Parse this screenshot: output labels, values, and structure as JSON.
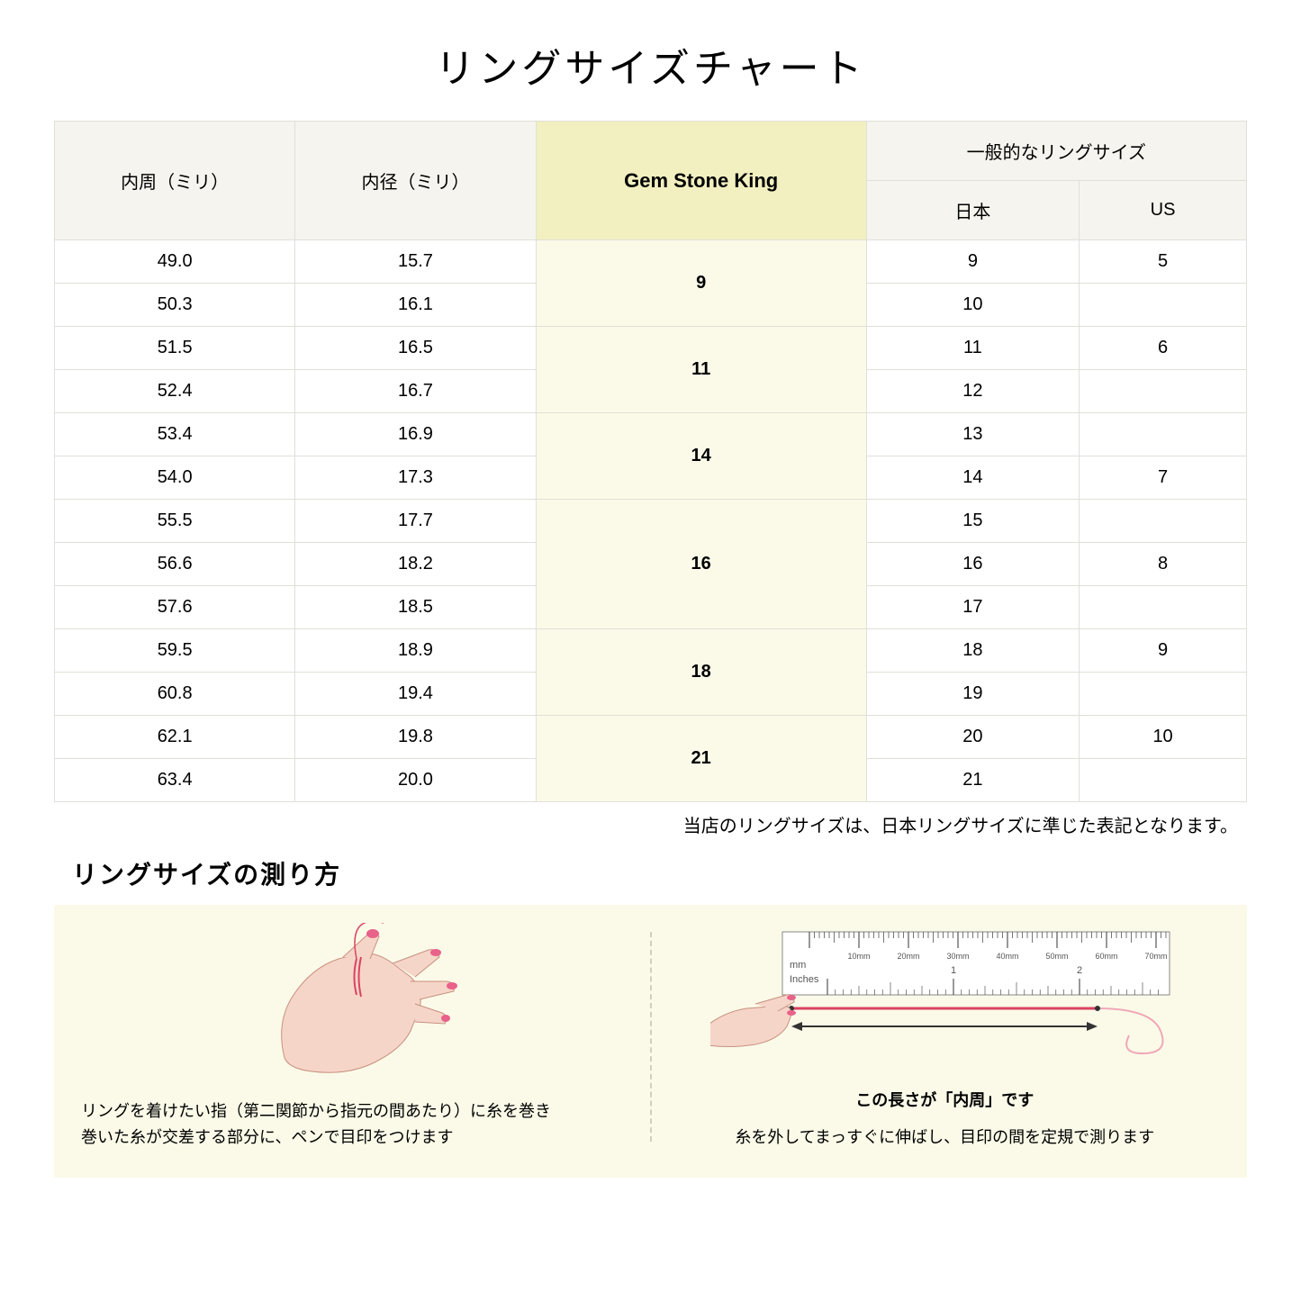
{
  "title": "リングサイズチャート",
  "headers": {
    "circumference": "内周（ミリ）",
    "diameter": "内径（ミリ）",
    "gsk": "Gem Stone King",
    "general": "一般的なリングサイズ",
    "japan": "日本",
    "us": "US"
  },
  "rows": [
    {
      "circ": "49.0",
      "diam": "15.7",
      "gsk": "9",
      "gsk_span": 2,
      "jp": "9",
      "us": "5"
    },
    {
      "circ": "50.3",
      "diam": "16.1",
      "jp": "10",
      "us": ""
    },
    {
      "circ": "51.5",
      "diam": "16.5",
      "gsk": "11",
      "gsk_span": 2,
      "jp": "11",
      "us": "6"
    },
    {
      "circ": "52.4",
      "diam": "16.7",
      "jp": "12",
      "us": ""
    },
    {
      "circ": "53.4",
      "diam": "16.9",
      "gsk": "14",
      "gsk_span": 2,
      "jp": "13",
      "us": ""
    },
    {
      "circ": "54.0",
      "diam": "17.3",
      "jp": "14",
      "us": "7"
    },
    {
      "circ": "55.5",
      "diam": "17.7",
      "gsk": "16",
      "gsk_span": 3,
      "jp": "15",
      "us": ""
    },
    {
      "circ": "56.6",
      "diam": "18.2",
      "jp": "16",
      "us": "8"
    },
    {
      "circ": "57.6",
      "diam": "18.5",
      "jp": "17",
      "us": ""
    },
    {
      "circ": "59.5",
      "diam": "18.9",
      "gsk": "18",
      "gsk_span": 2,
      "jp": "18",
      "us": "9"
    },
    {
      "circ": "60.8",
      "diam": "19.4",
      "jp": "19",
      "us": ""
    },
    {
      "circ": "62.1",
      "diam": "19.8",
      "gsk": "21",
      "gsk_span": 2,
      "jp": "20",
      "us": "10"
    },
    {
      "circ": "63.4",
      "diam": "20.0",
      "jp": "21",
      "us": ""
    }
  ],
  "note": "当店のリングサイズは、日本リングサイズに準じた表記となります。",
  "subtitle": "リングサイズの測り方",
  "instruction_left": "リングを着けたい指（第二関節から指元の間あたり）に糸を巻き\n巻いた糸が交差する部分に、ペンで目印をつけます",
  "instruction_right": "糸を外してまっすぐに伸ばし、目印の間を定規で測ります",
  "arrow_label": "この長さが「内周」です",
  "ruler": {
    "mm_label": "mm",
    "inches_label": "Inches",
    "mm_marks": [
      "10mm",
      "20mm",
      "30mm",
      "40mm",
      "50mm",
      "60mm",
      "70mm"
    ],
    "inch_marks": [
      "1",
      "2"
    ]
  },
  "colors": {
    "skin": "#f5d5c8",
    "nail": "#e8628a",
    "thread": "#d94360",
    "cream_bg": "#fbfae8",
    "header_bg": "#f5f4ee",
    "highlight_bg": "#f2f0c0",
    "border": "#e0e0d8"
  }
}
